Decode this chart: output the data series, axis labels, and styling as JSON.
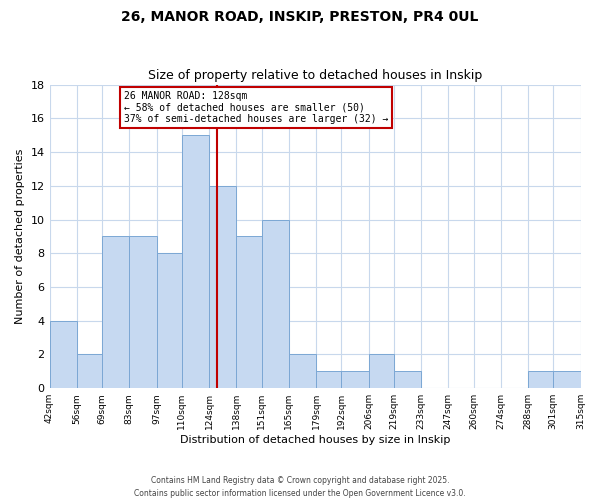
{
  "title": "26, MANOR ROAD, INSKIP, PRESTON, PR4 0UL",
  "subtitle": "Size of property relative to detached houses in Inskip",
  "xlabel": "Distribution of detached houses by size in Inskip",
  "ylabel": "Number of detached properties",
  "bar_color": "#c6d9f1",
  "bar_edge_color": "#7ba7d4",
  "vline_x": 128,
  "vline_color": "#c00000",
  "annotation_title": "26 MANOR ROAD: 128sqm",
  "annotation_line1": "← 58% of detached houses are smaller (50)",
  "annotation_line2": "37% of semi-detached houses are larger (32) →",
  "bin_edges": [
    42,
    56,
    69,
    83,
    97,
    110,
    124,
    138,
    151,
    165,
    179,
    192,
    206,
    219,
    233,
    247,
    260,
    274,
    288,
    301,
    315
  ],
  "counts": [
    4,
    2,
    9,
    9,
    8,
    15,
    12,
    9,
    10,
    2,
    1,
    1,
    2,
    1,
    0,
    0,
    0,
    0,
    1,
    1
  ],
  "ylim": [
    0,
    18
  ],
  "yticks": [
    0,
    2,
    4,
    6,
    8,
    10,
    12,
    14,
    16,
    18
  ],
  "tick_labels": [
    "42sqm",
    "56sqm",
    "69sqm",
    "83sqm",
    "97sqm",
    "110sqm",
    "124sqm",
    "138sqm",
    "151sqm",
    "165sqm",
    "179sqm",
    "192sqm",
    "206sqm",
    "219sqm",
    "233sqm",
    "247sqm",
    "260sqm",
    "274sqm",
    "288sqm",
    "301sqm",
    "315sqm"
  ],
  "footer_line1": "Contains HM Land Registry data © Crown copyright and database right 2025.",
  "footer_line2": "Contains public sector information licensed under the Open Government Licence v3.0.",
  "bg_color": "#ffffff",
  "grid_color": "#c8d8ec",
  "annotation_box_color": "#ffffff",
  "annotation_box_edge": "#c00000"
}
